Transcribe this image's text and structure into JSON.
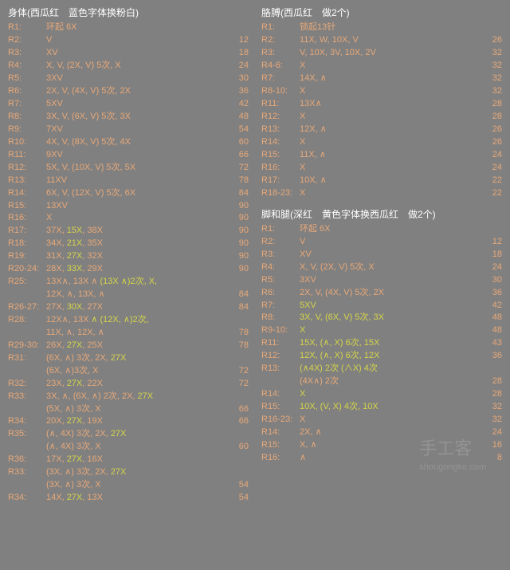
{
  "watermark": {
    "main": "手工客",
    "sub": "shougongke.com"
  },
  "left": {
    "title_prefix": "身体",
    "title_note": "(西瓜红　蓝色字体换粉白)",
    "rows": [
      {
        "r": "R1:",
        "t": "环起 6X",
        "c": ""
      },
      {
        "r": "R2:",
        "t": "V",
        "c": "12"
      },
      {
        "r": "R3:",
        "t": "XV",
        "c": "18"
      },
      {
        "r": "R4:",
        "t": "X, V, (2X, V) 5次, X",
        "c": "24"
      },
      {
        "r": "R5:",
        "t": "3XV",
        "c": "30"
      },
      {
        "r": "R6:",
        "t": "2X, V, (4X, V) 5次, 2X",
        "c": "36"
      },
      {
        "r": "R7:",
        "t": "5XV",
        "c": "42"
      },
      {
        "r": "R8:",
        "t": "3X, V, (6X, V) 5次, 3X",
        "c": "48"
      },
      {
        "r": "R9:",
        "t": "7XV",
        "c": "54"
      },
      {
        "r": "R10:",
        "t": "4X, V, (8X, V) 5次, 4X",
        "c": "60"
      },
      {
        "r": "R11:",
        "t": "9XV",
        "c": "66"
      },
      {
        "r": "R12:",
        "t": "5X, V, (10X, V) 5次, 5X",
        "c": "72"
      },
      {
        "r": "R13:",
        "t": "11XV",
        "c": "78"
      },
      {
        "r": "R14:",
        "t": "6X, V, (12X, V) 5次, 6X",
        "c": "84"
      },
      {
        "r": "R15:",
        "t": "13XV",
        "c": "90"
      },
      {
        "r": "R16:",
        "t": "X",
        "c": "90"
      },
      {
        "r": "R17:",
        "t": "37X, <hl>15X</hl>, 38X",
        "c": "90"
      },
      {
        "r": "R18:",
        "t": "34X, <hl>21X</hl>, 35X",
        "c": "90"
      },
      {
        "r": "R19:",
        "t": "31X, <hl>27X</hl>, 32X",
        "c": "90"
      },
      {
        "r": "R20-24:",
        "t": "28X, <hl>33X</hl>, 29X",
        "c": "90"
      },
      {
        "r": "R25:",
        "t": "13X∧, 13X ∧ <hl>(13X ∧)2次, X,</hl>\n12X, ∧, 13X, ∧",
        "c": "84"
      },
      {
        "r": "R26-27:",
        "t": "27X, <hl>30X</hl>, 27X",
        "c": "84"
      },
      {
        "r": "R28:",
        "t": "12X∧, 13X <hl>∧ (12X, ∧)2次,</hl>\n11X, ∧, 12X, ∧",
        "c": "78"
      },
      {
        "r": "R29-30:",
        "t": "26X, <hl>27X</hl>, 25X",
        "c": "78"
      },
      {
        "r": "R31:",
        "t": "(6X, ∧) 3次, 2X, <hl>27X</hl>\n(6X, ∧)3次, X",
        "c": "72"
      },
      {
        "r": "R32:",
        "t": "23X, <hl>27X</hl>, 22X",
        "c": "72"
      },
      {
        "r": "R33:",
        "t": "3X, ∧, (6X, ∧) 2次, 2X, <hl>27X</hl>\n(5X, ∧) 3次, X",
        "c": "66"
      },
      {
        "r": "R34:",
        "t": "20X, <hl>27X</hl>, 19X",
        "c": "66"
      },
      {
        "r": "R35:",
        "t": "(∧, 4X) 3次, 2X, <hl>27X</hl>\n(∧, 4X) 3次, X",
        "c": "60"
      },
      {
        "r": "R36:",
        "t": "17X, <hl>27X</hl>, 16X",
        "c": ""
      },
      {
        "r": "R33:",
        "t": "(3X, ∧) 3次, 2X, <hl>27X</hl>\n(3X, ∧) 3次, X",
        "c": "54"
      },
      {
        "r": "R34:",
        "t": "14X, <hl>27X</hl>, 13X",
        "c": "54"
      }
    ]
  },
  "rightTop": {
    "title_prefix": "胳膊",
    "title_note": "(西瓜红　做2个)",
    "rows": [
      {
        "r": "R1:",
        "t": "锁起13针",
        "c": ""
      },
      {
        "r": "R2:",
        "t": "11X, W, 10X, V",
        "c": "26"
      },
      {
        "r": "R3:",
        "t": "V, 10X, 3V, 10X, 2V",
        "c": "32"
      },
      {
        "r": "R4-6:",
        "t": "X",
        "c": "32"
      },
      {
        "r": "R7:",
        "t": "14X, ∧",
        "c": "32"
      },
      {
        "r": "R8-10:",
        "t": "X",
        "c": "32"
      },
      {
        "r": "R11:",
        "t": "13X∧",
        "c": "28"
      },
      {
        "r": "R12:",
        "t": "X",
        "c": "28"
      },
      {
        "r": "R13:",
        "t": "12X, ∧",
        "c": "26"
      },
      {
        "r": "R14:",
        "t": "X",
        "c": "26"
      },
      {
        "r": "R15:",
        "t": "11X, ∧",
        "c": "24"
      },
      {
        "r": "R16:",
        "t": "X",
        "c": "24"
      },
      {
        "r": "R17:",
        "t": "10X, ∧",
        "c": "22"
      },
      {
        "r": "R18-23:",
        "t": "X",
        "c": "22"
      }
    ]
  },
  "rightBot": {
    "title_prefix": "脚和腿",
    "title_note": "(深红　黄色字体换西瓜红　做2个)",
    "rows": [
      {
        "r": "R1:",
        "t": "环起 6X",
        "c": ""
      },
      {
        "r": "R2:",
        "t": "V",
        "c": "12"
      },
      {
        "r": "R3:",
        "t": "XV",
        "c": "18"
      },
      {
        "r": "R4:",
        "t": "X, V, (2X, V) 5次, X",
        "c": "24"
      },
      {
        "r": "R5:",
        "t": "3XV",
        "c": "30"
      },
      {
        "r": "R6:",
        "t": "2X, V, (4X, V) 5次, 2X",
        "c": "36"
      },
      {
        "r": "R7:",
        "t": "<hl>5XV</hl>",
        "c": "42"
      },
      {
        "r": "R8:",
        "t": "<hl>3X, V, (6X, V) 5次, 3X</hl>",
        "c": "48"
      },
      {
        "r": "R9-10:",
        "t": "<hl>X</hl>",
        "c": "48"
      },
      {
        "r": "R11:",
        "t": "<hl>15X,  (∧, X) 6次, 15X</hl>",
        "c": "43"
      },
      {
        "r": "R12:",
        "t": "<hl>12X,  (∧, X) 6次, 12X</hl>",
        "c": "36"
      },
      {
        "r": "R13:",
        "t": "<hl>(∧4X) 2次 (∧X) 4次\n(4X∧) 2次</hl>",
        "c": "28"
      },
      {
        "r": "R14:",
        "t": "<hl>X</hl>",
        "c": "28"
      },
      {
        "r": "R15:",
        "t": "<hl>10X,  (V, X) 4次, 10X</hl>",
        "c": "32"
      },
      {
        "r": "R16-23:",
        "t": "X",
        "c": "32"
      },
      {
        "r": "R14:",
        "t": "2X, ∧",
        "c": "24"
      },
      {
        "r": "R15:",
        "t": "X, ∧",
        "c": "16"
      },
      {
        "r": "R16:",
        "t": "∧",
        "c": "8"
      }
    ]
  }
}
